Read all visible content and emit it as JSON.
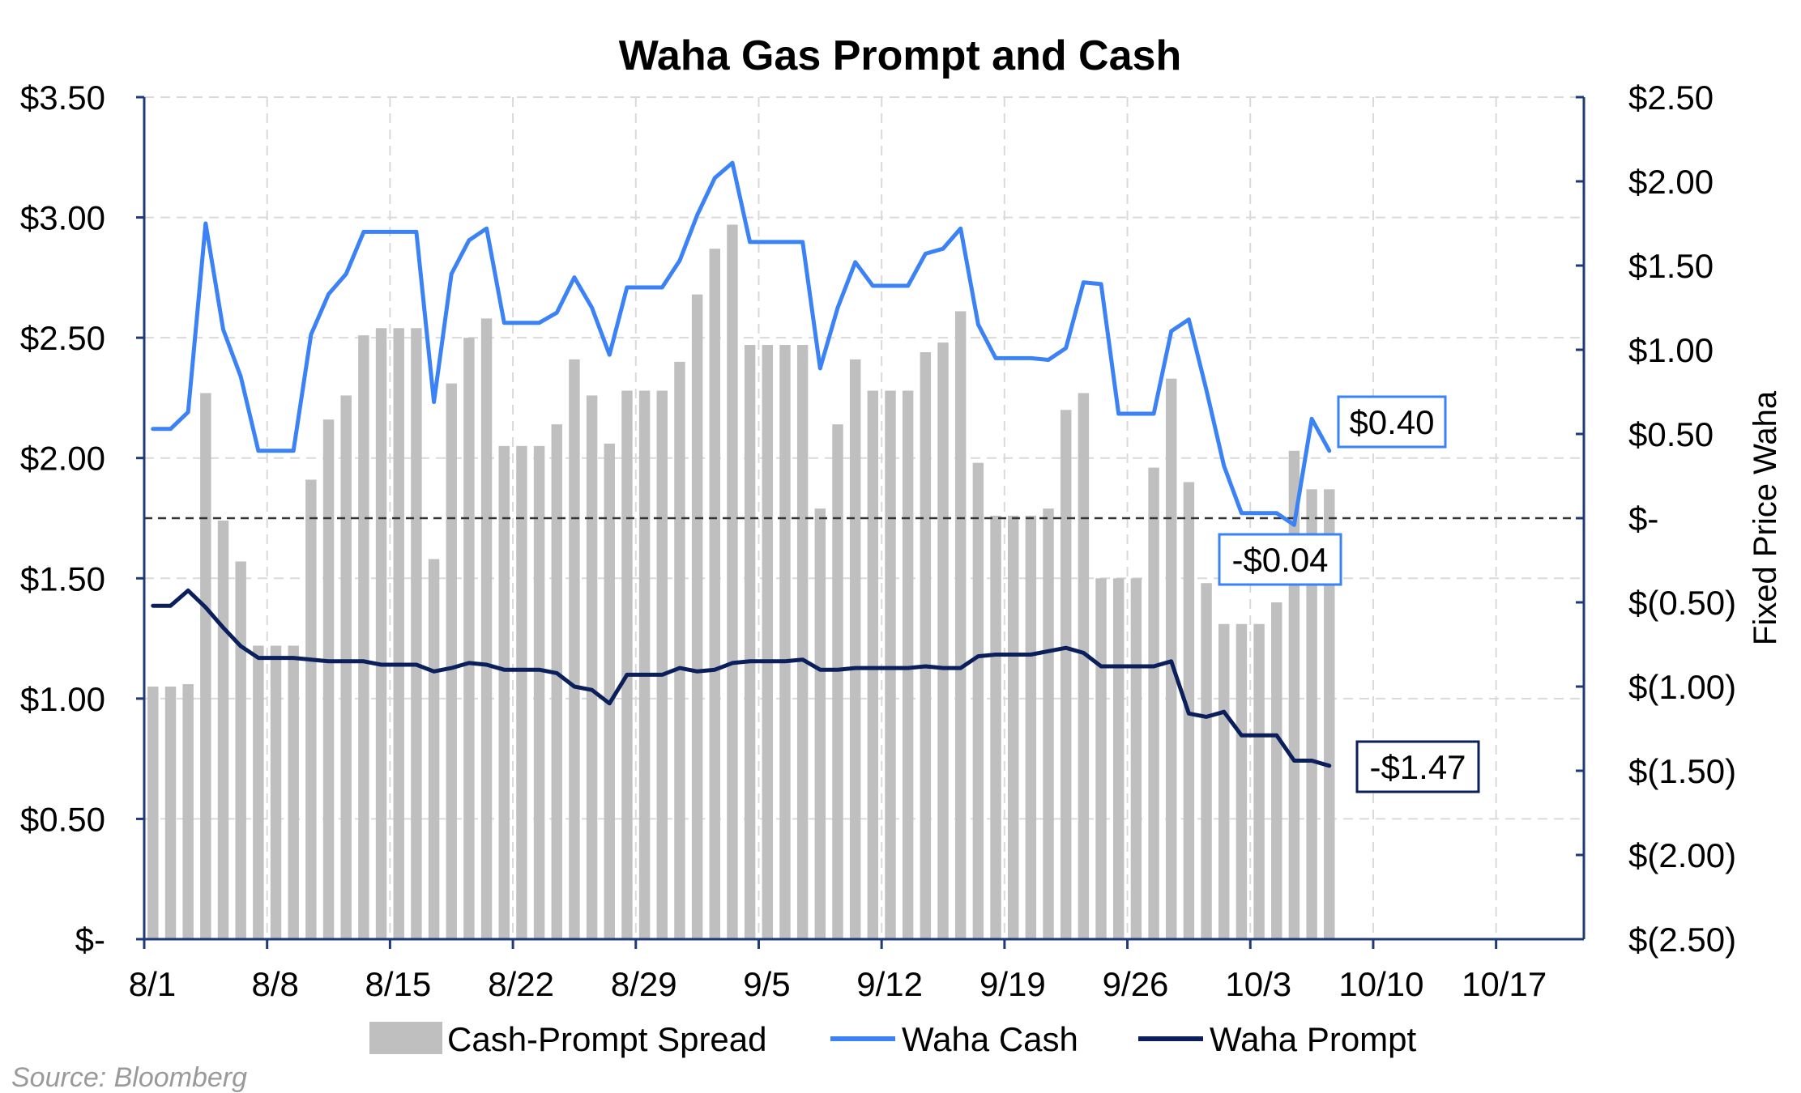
{
  "chart_data": {
    "type": "bar",
    "title": "Waha Gas Prompt and Cash",
    "source": "Source: Bloomberg",
    "y_right_label": "Fixed Price Waha",
    "y_left_ticks": [
      "$-",
      "$0.50",
      "$1.00",
      "$1.50",
      "$2.00",
      "$2.50",
      "$3.00",
      "$3.50"
    ],
    "y_left_range": [
      0,
      3.5
    ],
    "y_right_ticks": [
      "$(2.50)",
      "$(2.00)",
      "$(1.50)",
      "$(1.00)",
      "$(0.50)",
      "$-",
      "$0.50",
      "$1.00",
      "$1.50",
      "$2.00",
      "$2.50"
    ],
    "y_right_range": [
      -2.5,
      2.5
    ],
    "x_tick_labels": [
      "8/1",
      "8/8",
      "8/15",
      "8/22",
      "8/29",
      "9/5",
      "9/12",
      "9/19",
      "9/26",
      "10/3",
      "10/10",
      "10/17"
    ],
    "x_range_days": [
      0,
      82
    ],
    "x_tick_step_days": 7,
    "grid": true,
    "legend_position": "bottom",
    "colors": {
      "spread": "#bfbfbf",
      "cash": "#3b82f6",
      "prompt": "#0a1f5c",
      "axis": "#1f3a78",
      "grid": "#d9d9d9"
    },
    "series": [
      {
        "name": "Cash-Prompt Spread",
        "kind": "bar",
        "axis": "left",
        "x": [
          0,
          1,
          2,
          3,
          4,
          5,
          6,
          7,
          8,
          9,
          10,
          11,
          12,
          13,
          14,
          15,
          16,
          17,
          18,
          19,
          20,
          21,
          22,
          23,
          24,
          25,
          26,
          27,
          28,
          29,
          30,
          31,
          32,
          33,
          34,
          35,
          36,
          37,
          38,
          39,
          40,
          41,
          42,
          43,
          44,
          45,
          46,
          47,
          48,
          49,
          50,
          51,
          52,
          53,
          54,
          55,
          56,
          57,
          58,
          59,
          60,
          61,
          62,
          63,
          64,
          65,
          66,
          67,
          68
        ],
        "values": [
          1.05,
          1.05,
          1.06,
          2.27,
          1.74,
          1.57,
          1.22,
          1.22,
          1.22,
          1.91,
          2.16,
          2.26,
          2.51,
          2.54,
          2.54,
          2.54,
          1.58,
          2.31,
          2.5,
          2.58,
          2.05,
          2.05,
          2.05,
          2.14,
          2.41,
          2.26,
          2.06,
          2.28,
          2.28,
          2.28,
          2.4,
          2.68,
          2.87,
          2.97,
          2.47,
          2.47,
          2.47,
          2.47,
          1.79,
          2.14,
          2.41,
          2.28,
          2.28,
          2.28,
          2.44,
          2.48,
          2.61,
          1.98,
          1.76,
          1.76,
          1.76,
          1.79,
          2.2,
          2.27,
          1.5,
          1.5,
          1.5,
          1.96,
          2.33,
          1.9,
          1.48,
          1.31,
          1.31,
          1.31,
          1.4,
          2.03,
          1.87,
          1.87,
          0
        ]
      },
      {
        "name": "Waha Cash",
        "kind": "line",
        "axis": "right",
        "x": [
          0,
          1,
          2,
          3,
          4,
          5,
          6,
          7,
          8,
          9,
          10,
          11,
          12,
          13,
          14,
          15,
          16,
          17,
          18,
          19,
          20,
          21,
          22,
          23,
          24,
          25,
          26,
          27,
          28,
          29,
          30,
          31,
          32,
          33,
          34,
          35,
          36,
          37,
          38,
          39,
          40,
          41,
          42,
          43,
          44,
          45,
          46,
          47,
          48,
          49,
          50,
          51,
          52,
          53,
          54,
          55,
          56,
          57,
          58,
          59,
          60,
          61,
          62,
          63,
          64,
          65,
          66,
          67
        ],
        "values": [
          0.53,
          0.53,
          0.63,
          1.75,
          1.12,
          0.84,
          0.4,
          0.4,
          0.4,
          1.09,
          1.33,
          1.45,
          1.7,
          1.7,
          1.7,
          1.7,
          0.69,
          1.45,
          1.65,
          1.72,
          1.16,
          1.16,
          1.16,
          1.22,
          1.43,
          1.25,
          0.97,
          1.37,
          1.37,
          1.37,
          1.53,
          1.8,
          2.02,
          2.11,
          1.64,
          1.64,
          1.64,
          1.64,
          0.89,
          1.25,
          1.52,
          1.38,
          1.38,
          1.38,
          1.57,
          1.6,
          1.72,
          1.15,
          0.95,
          0.95,
          0.95,
          0.94,
          1.01,
          1.4,
          1.39,
          0.62,
          0.62,
          0.62,
          1.11,
          1.18,
          0.76,
          0.31,
          0.03,
          0.03,
          0.03,
          -0.04,
          0.59,
          0.4
        ]
      },
      {
        "name": "Waha Prompt",
        "kind": "line",
        "axis": "right",
        "x": [
          0,
          1,
          2,
          3,
          4,
          5,
          6,
          7,
          8,
          9,
          10,
          11,
          12,
          13,
          14,
          15,
          16,
          17,
          18,
          19,
          20,
          21,
          22,
          23,
          24,
          25,
          26,
          27,
          28,
          29,
          30,
          31,
          32,
          33,
          34,
          35,
          36,
          37,
          38,
          39,
          40,
          41,
          42,
          43,
          44,
          45,
          46,
          47,
          48,
          49,
          50,
          51,
          52,
          53,
          54,
          55,
          56,
          57,
          58,
          59,
          60,
          61,
          62,
          63,
          64,
          65,
          66,
          67
        ],
        "values": [
          -0.52,
          -0.52,
          -0.43,
          -0.53,
          -0.65,
          -0.76,
          -0.83,
          -0.83,
          -0.83,
          -0.84,
          -0.85,
          -0.85,
          -0.85,
          -0.87,
          -0.87,
          -0.87,
          -0.91,
          -0.89,
          -0.86,
          -0.87,
          -0.9,
          -0.9,
          -0.9,
          -0.92,
          -1.0,
          -1.02,
          -1.1,
          -0.93,
          -0.93,
          -0.93,
          -0.89,
          -0.91,
          -0.9,
          -0.86,
          -0.85,
          -0.85,
          -0.85,
          -0.84,
          -0.9,
          -0.9,
          -0.89,
          -0.89,
          -0.89,
          -0.89,
          -0.88,
          -0.89,
          -0.89,
          -0.82,
          -0.81,
          -0.81,
          -0.81,
          -0.79,
          -0.77,
          -0.8,
          -0.88,
          -0.88,
          -0.88,
          -0.88,
          -0.85,
          -1.16,
          -1.18,
          -1.15,
          -1.29,
          -1.29,
          -1.29,
          -1.44,
          -1.44,
          -1.47
        ]
      }
    ],
    "callouts": [
      {
        "text": "$0.40",
        "series": "Waha Cash",
        "value": 0.4,
        "color": "#3b82f6"
      },
      {
        "text": "-$0.04",
        "series": "Waha Cash",
        "value": -0.04,
        "color": "#3b82f6"
      },
      {
        "text": "-$1.47",
        "series": "Waha Prompt",
        "value": -1.47,
        "color": "#0a1f5c"
      }
    ]
  }
}
